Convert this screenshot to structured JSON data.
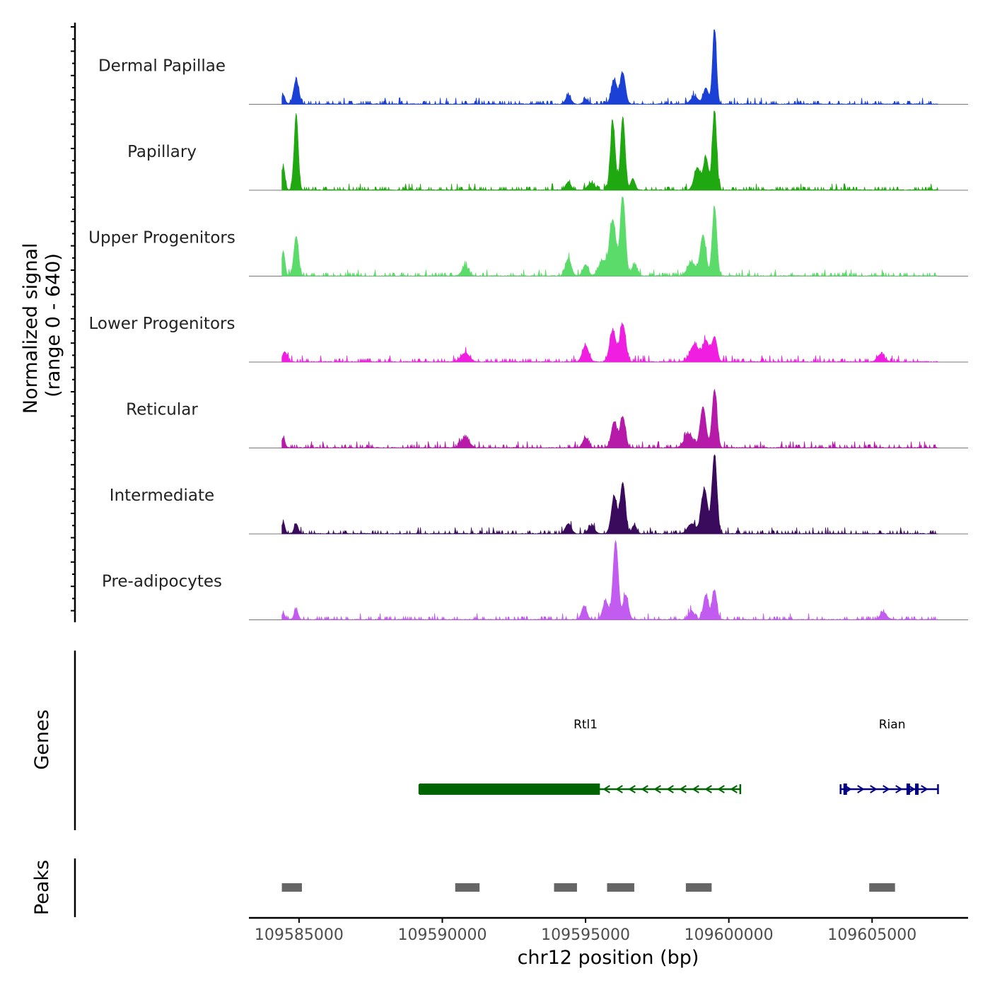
{
  "chart_data": {
    "type": "area",
    "title": "",
    "ylabel": "Normalized signal\n(range 0 - 640)",
    "ylabel_lines": [
      "Normalized signal",
      "(range 0 - 640)"
    ],
    "xlabel": "chr12 position (bp)",
    "xlim": [
      109583250,
      109608350
    ],
    "ylim": [
      0,
      640
    ],
    "x_ticks": [
      109585000,
      109590000,
      109595000,
      109600000,
      109605000
    ],
    "x_tick_labels": [
      "109585000",
      "109590000",
      "109595000",
      "109600000",
      "109605000"
    ],
    "track_labels": {
      "genes": "Genes",
      "peaks": "Peaks"
    },
    "data_start": 109584400,
    "data_end": 109607300,
    "series": [
      {
        "name": "Dermal Papillae",
        "color": "#1a40d6",
        "peaks": [
          {
            "x": 109584450,
            "y": 75,
            "w": 60
          },
          {
            "x": 109584900,
            "y": 195,
            "w": 90
          },
          {
            "x": 109594400,
            "y": 70,
            "w": 90
          },
          {
            "x": 109595000,
            "y": 40,
            "w": 80
          },
          {
            "x": 109596000,
            "y": 195,
            "w": 100
          },
          {
            "x": 109596300,
            "y": 250,
            "w": 90
          },
          {
            "x": 109598800,
            "y": 60,
            "w": 130
          },
          {
            "x": 109599200,
            "y": 130,
            "w": 90
          },
          {
            "x": 109599500,
            "y": 600,
            "w": 70
          }
        ]
      },
      {
        "name": "Papillary",
        "color": "#1fa80f",
        "peaks": [
          {
            "x": 109584450,
            "y": 190,
            "w": 60
          },
          {
            "x": 109584900,
            "y": 620,
            "w": 70
          },
          {
            "x": 109594400,
            "y": 65,
            "w": 90
          },
          {
            "x": 109595200,
            "y": 55,
            "w": 120
          },
          {
            "x": 109595950,
            "y": 540,
            "w": 85
          },
          {
            "x": 109596300,
            "y": 590,
            "w": 80
          },
          {
            "x": 109596650,
            "y": 90,
            "w": 80
          },
          {
            "x": 109598900,
            "y": 180,
            "w": 110
          },
          {
            "x": 109599200,
            "y": 260,
            "w": 90
          },
          {
            "x": 109599500,
            "y": 640,
            "w": 75
          }
        ]
      },
      {
        "name": "Upper Progenitors",
        "color": "#5bdc6a",
        "peaks": [
          {
            "x": 109584450,
            "y": 200,
            "w": 60
          },
          {
            "x": 109584900,
            "y": 320,
            "w": 80
          },
          {
            "x": 109590800,
            "y": 70,
            "w": 120
          },
          {
            "x": 109594400,
            "y": 140,
            "w": 100
          },
          {
            "x": 109595000,
            "y": 90,
            "w": 90
          },
          {
            "x": 109595600,
            "y": 120,
            "w": 140
          },
          {
            "x": 109595950,
            "y": 450,
            "w": 110
          },
          {
            "x": 109596300,
            "y": 640,
            "w": 90
          },
          {
            "x": 109596700,
            "y": 90,
            "w": 90
          },
          {
            "x": 109598700,
            "y": 110,
            "w": 140
          },
          {
            "x": 109599100,
            "y": 330,
            "w": 100
          },
          {
            "x": 109599500,
            "y": 560,
            "w": 80
          }
        ]
      },
      {
        "name": "Lower Progenitors",
        "color": "#f01ee0",
        "peaks": [
          {
            "x": 109584500,
            "y": 80,
            "w": 80
          },
          {
            "x": 109590800,
            "y": 70,
            "w": 150
          },
          {
            "x": 109595000,
            "y": 130,
            "w": 110
          },
          {
            "x": 109595950,
            "y": 250,
            "w": 110
          },
          {
            "x": 109596300,
            "y": 300,
            "w": 100
          },
          {
            "x": 109598800,
            "y": 140,
            "w": 150
          },
          {
            "x": 109599200,
            "y": 170,
            "w": 110
          },
          {
            "x": 109599500,
            "y": 200,
            "w": 90
          },
          {
            "x": 109605300,
            "y": 60,
            "w": 120
          }
        ]
      },
      {
        "name": "Reticular",
        "color": "#b61aa8",
        "peaks": [
          {
            "x": 109584450,
            "y": 80,
            "w": 60
          },
          {
            "x": 109590800,
            "y": 80,
            "w": 140
          },
          {
            "x": 109595000,
            "y": 80,
            "w": 100
          },
          {
            "x": 109596000,
            "y": 210,
            "w": 100
          },
          {
            "x": 109596300,
            "y": 250,
            "w": 90
          },
          {
            "x": 109598600,
            "y": 110,
            "w": 150
          },
          {
            "x": 109599100,
            "y": 330,
            "w": 100
          },
          {
            "x": 109599500,
            "y": 470,
            "w": 85
          }
        ]
      },
      {
        "name": "Intermediate",
        "color": "#3a0a5c",
        "peaks": [
          {
            "x": 109584450,
            "y": 90,
            "w": 60
          },
          {
            "x": 109584900,
            "y": 80,
            "w": 70
          },
          {
            "x": 109594400,
            "y": 80,
            "w": 100
          },
          {
            "x": 109595200,
            "y": 60,
            "w": 110
          },
          {
            "x": 109596000,
            "y": 300,
            "w": 100
          },
          {
            "x": 109596300,
            "y": 410,
            "w": 90
          },
          {
            "x": 109596700,
            "y": 70,
            "w": 80
          },
          {
            "x": 109598700,
            "y": 80,
            "w": 140
          },
          {
            "x": 109599150,
            "y": 360,
            "w": 110
          },
          {
            "x": 109599500,
            "y": 640,
            "w": 85
          }
        ]
      },
      {
        "name": "Pre-adipocytes",
        "color": "#c25cf0",
        "peaks": [
          {
            "x": 109584450,
            "y": 50,
            "w": 60
          },
          {
            "x": 109584900,
            "y": 80,
            "w": 70
          },
          {
            "x": 109594950,
            "y": 110,
            "w": 90
          },
          {
            "x": 109595700,
            "y": 150,
            "w": 100
          },
          {
            "x": 109596050,
            "y": 640,
            "w": 90
          },
          {
            "x": 109596400,
            "y": 200,
            "w": 90
          },
          {
            "x": 109598700,
            "y": 70,
            "w": 100
          },
          {
            "x": 109599200,
            "y": 200,
            "w": 90
          },
          {
            "x": 109599500,
            "y": 240,
            "w": 80
          },
          {
            "x": 109605400,
            "y": 60,
            "w": 110
          }
        ]
      }
    ],
    "genes": [
      {
        "name": "Rtl1",
        "color": "#006400",
        "strand": "-",
        "start": 109589200,
        "end": 109600400,
        "exons": [
          [
            109589200,
            109595500
          ]
        ],
        "label_x": 109595000
      },
      {
        "name": "Rian",
        "color": "#000080",
        "strand": "+",
        "start": 109603900,
        "end": 109607300,
        "exons": [
          [
            109604000,
            109604100
          ],
          [
            109606200,
            109606300
          ],
          [
            109606500,
            109606550
          ]
        ],
        "label_x": 109605700
      }
    ],
    "peaks_track": [
      [
        109584400,
        109585100
      ],
      [
        109590450,
        109591300
      ],
      [
        109593900,
        109594700
      ],
      [
        109595750,
        109596700
      ],
      [
        109598500,
        109599400
      ],
      [
        109604900,
        109605800
      ]
    ]
  }
}
